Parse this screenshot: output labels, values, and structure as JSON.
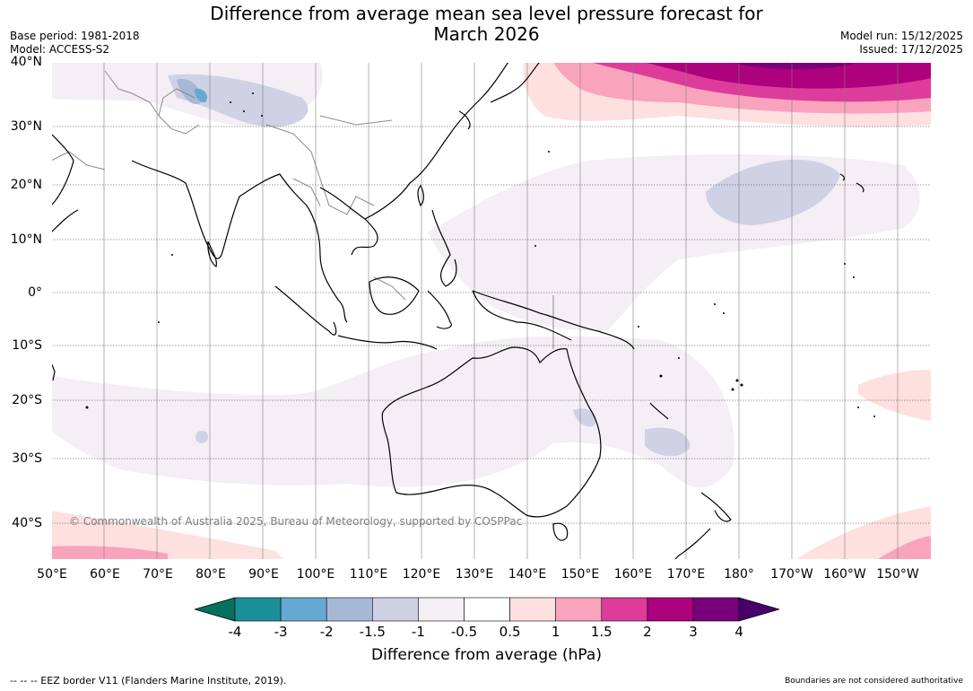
{
  "title_line1": "Difference from average mean sea level pressure forecast for",
  "title_line2": "March 2026",
  "meta_left": [
    "Base period: 1981-2018",
    "Model: ACCESS-S2"
  ],
  "meta_right": [
    "Model run: 15/12/2025",
    "Issued: 17/12/2025"
  ],
  "map": {
    "copyright": "© Commonwealth of Australia 2025, Bureau of Meteorology, supported by COSPPac",
    "lat_labels": [
      "40°N",
      "30°N",
      "20°N",
      "10°N",
      "0°",
      "10°S",
      "20°S",
      "30°S",
      "40°S"
    ],
    "lon_labels": [
      "50°E",
      "60°E",
      "70°E",
      "80°E",
      "90°E",
      "100°E",
      "110°E",
      "120°E",
      "130°E",
      "140°E",
      "150°E",
      "160°E",
      "170°E",
      "180°",
      "170°W",
      "160°W",
      "150°W"
    ],
    "land_color": "#ffffff",
    "coast_color": "#000000",
    "border_color": "#808080"
  },
  "colorbar": {
    "labels": [
      "-4",
      "-3",
      "-2",
      "-1.5",
      "-1",
      "-0.5",
      "0.5",
      "1",
      "1.5",
      "2",
      "3",
      "4"
    ],
    "colors": [
      "#1b8f97",
      "#65a8d2",
      "#a7b8d6",
      "#cfd1e5",
      "#f4eef5",
      "#ffffff",
      "#fde0df",
      "#f9a3bd",
      "#dd3c9a",
      "#ad017e",
      "#79007a"
    ],
    "under_color": "#06725e",
    "over_color": "#49006a",
    "title": "Difference from average (hPa)"
  },
  "footer_left": "--  --  -- EEZ border V11 (Flanders Marine Institute, 2019).",
  "footer_right": "Boundaries are not considered authoritative"
}
